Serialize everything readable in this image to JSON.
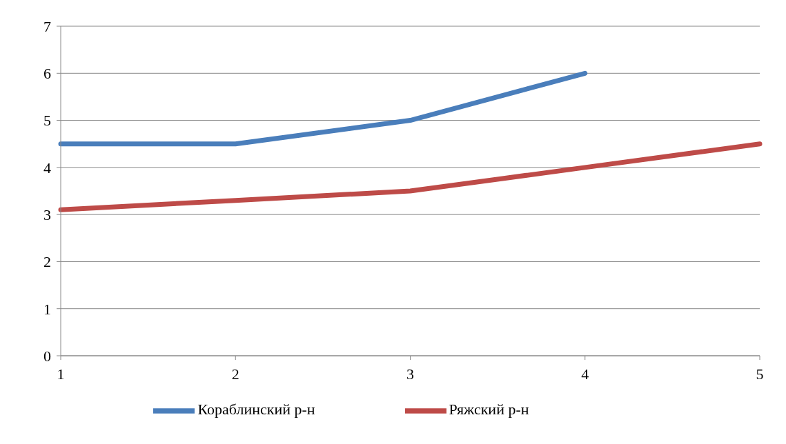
{
  "chart_data": {
    "type": "line",
    "categories": [
      "1",
      "2",
      "3",
      "4",
      "5"
    ],
    "series": [
      {
        "name": "Кораблинский р-н",
        "color": "#4a7ebb",
        "values": [
          4.5,
          4.5,
          5,
          6,
          null
        ]
      },
      {
        "name": "Ряжский р-н",
        "color": "#be4b48",
        "values": [
          3.1,
          3.3,
          3.5,
          4.0,
          4.5
        ]
      }
    ],
    "ylim": [
      0,
      7
    ],
    "yticks": [
      0,
      1,
      2,
      3,
      4,
      5,
      6,
      7
    ],
    "grid": "y",
    "legend": "bottom",
    "marker": "none",
    "line_style": "solid"
  }
}
